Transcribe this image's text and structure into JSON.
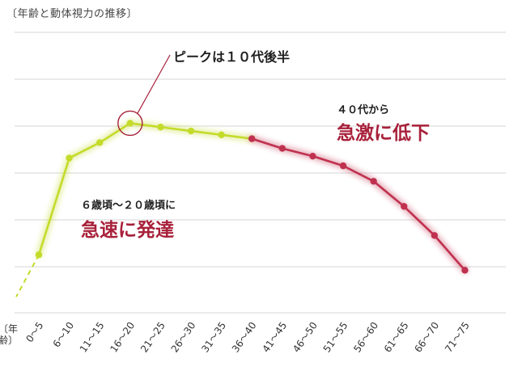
{
  "chart_data": {
    "type": "line",
    "title": "〔年齢と動体視力の推移〕",
    "xlabel": "〔年齢〕",
    "ylabel": "",
    "categories": [
      "0〜5",
      "6〜10",
      "11〜15",
      "16〜20",
      "21〜25",
      "26〜30",
      "31〜35",
      "36〜40",
      "41〜45",
      "46〜50",
      "51〜55",
      "56〜60",
      "61〜65",
      "66〜70",
      "71〜75"
    ],
    "values": [
      30,
      80,
      88,
      98,
      96,
      94,
      92,
      90,
      85,
      81,
      76,
      68,
      55,
      40,
      22
    ],
    "ylim": [
      0,
      145
    ],
    "grid": true,
    "rising_segment": [
      0,
      7
    ],
    "declining_segment": [
      7,
      14
    ],
    "peak_index": 3,
    "colors": {
      "rising": "#c4db2a",
      "declining": "#c0314f",
      "annotation_accent": "#a8203a",
      "grid": "#d6d6d6"
    }
  },
  "annotations": {
    "peak": "ピークは１０代後半",
    "rise_small": "６歳頃〜２０歳頃に",
    "rise_big": "急速に発達",
    "fall_small": "４０代から",
    "fall_big": "急激に低下"
  }
}
